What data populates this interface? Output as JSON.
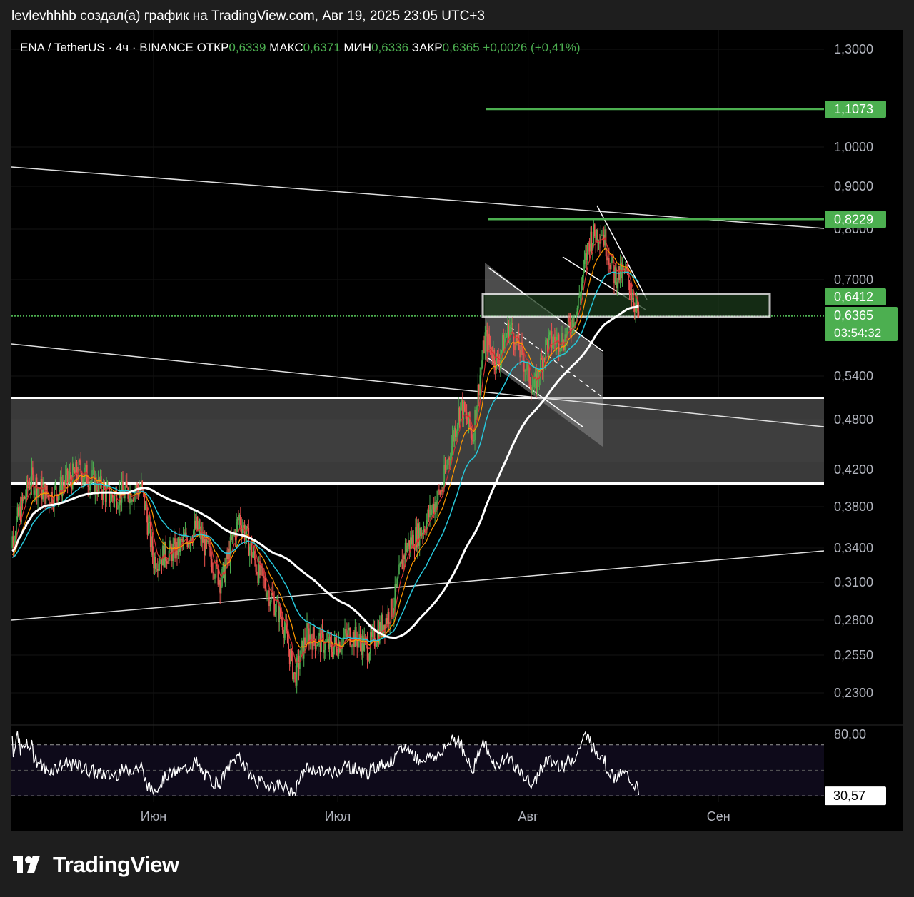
{
  "header": {
    "caption": "levlevhhhb создал(а) график на TradingView.com, Авг 19, 2025 23:05 UTC+3"
  },
  "legend": {
    "symbol": "ENA / TetherUS · 4ч · BINANCE",
    "open_label": "ОТКР",
    "open": "0,6339",
    "high_label": "МАКС",
    "high": "0,6371",
    "low_label": "МИН",
    "low": "0,6336",
    "close_label": "ЗАКР",
    "close": "0,6365",
    "change": "+0,0026 (+0,41%)"
  },
  "colors": {
    "up": "#26a69a",
    "upGreen": "#4caf50",
    "down": "#ef5350",
    "level": "#4caf50",
    "badge": "#4caf50",
    "white": "#ffffff",
    "ema_red": "#d32f2f",
    "ema_orange": "#ff9800",
    "ema_teal": "#26c6da"
  },
  "footer": {
    "brand": "TradingView",
    "logo_icon": "tradingview-logo-icon"
  },
  "chart_data": [
    {
      "type": "candlestick",
      "title": "ENA / TetherUS · 4ч · BINANCE",
      "price_axis_ticks": [
        "1,3000",
        "1,0000",
        "0,9000",
        "0,8000",
        "0,7000",
        "0,5400",
        "0,4800",
        "0,4200",
        "0,3800",
        "0,3400",
        "0,3100",
        "0,2800",
        "0,2550",
        "0,2300"
      ],
      "time_axis_ticks": [
        "Июн",
        "Июл",
        "Авг",
        "Сен"
      ],
      "price_badges": [
        {
          "label": "1,1073",
          "value": 1.1073
        },
        {
          "label": "0,8229",
          "value": 0.8229
        },
        {
          "label": "0,6412",
          "value": 0.6412
        },
        {
          "label": "0,6365",
          "value": 0.6365,
          "sub": "03:54:32"
        }
      ],
      "horizontal_levels": [
        1.1073,
        0.8229,
        0.6365
      ],
      "zones": [
        {
          "name": "support-zone",
          "from": 0.405,
          "to": 0.51
        },
        {
          "name": "resistance-box",
          "from": 0.635,
          "to": 0.675
        }
      ],
      "close_series": {
        "points_per_month": 180,
        "anchors": [
          [
            "05-08",
            0.33
          ],
          [
            "05-12",
            0.41
          ],
          [
            "05-15",
            0.39
          ],
          [
            "05-20",
            0.42
          ],
          [
            "05-25",
            0.39
          ],
          [
            "05-30",
            0.4
          ],
          [
            "06-01",
            0.33
          ],
          [
            "06-05",
            0.34
          ],
          [
            "06-08",
            0.36
          ],
          [
            "06-12",
            0.31
          ],
          [
            "06-15",
            0.37
          ],
          [
            "06-18",
            0.32
          ],
          [
            "06-22",
            0.28
          ],
          [
            "06-24",
            0.24
          ],
          [
            "06-26",
            0.27
          ],
          [
            "06-30",
            0.26
          ],
          [
            "07-03",
            0.27
          ],
          [
            "07-06",
            0.26
          ],
          [
            "07-10",
            0.29
          ],
          [
            "07-12",
            0.34
          ],
          [
            "07-15",
            0.36
          ],
          [
            "07-18",
            0.4
          ],
          [
            "07-21",
            0.5
          ],
          [
            "07-23",
            0.46
          ],
          [
            "07-25",
            0.6
          ],
          [
            "07-27",
            0.56
          ],
          [
            "07-29",
            0.62
          ],
          [
            "07-31",
            0.57
          ],
          [
            "08-02",
            0.52
          ],
          [
            "08-04",
            0.59
          ],
          [
            "08-07",
            0.6
          ],
          [
            "08-09",
            0.65
          ],
          [
            "08-11",
            0.78
          ],
          [
            "08-13",
            0.8
          ],
          [
            "08-15",
            0.71
          ],
          [
            "08-17",
            0.71
          ],
          [
            "08-19",
            0.6365
          ]
        ]
      }
    },
    {
      "type": "line",
      "title": "RSI",
      "axis_ticks": [
        "80,00"
      ],
      "value_badge": "30,57",
      "bands": [
        70,
        30
      ],
      "last_value": 30.57
    }
  ]
}
